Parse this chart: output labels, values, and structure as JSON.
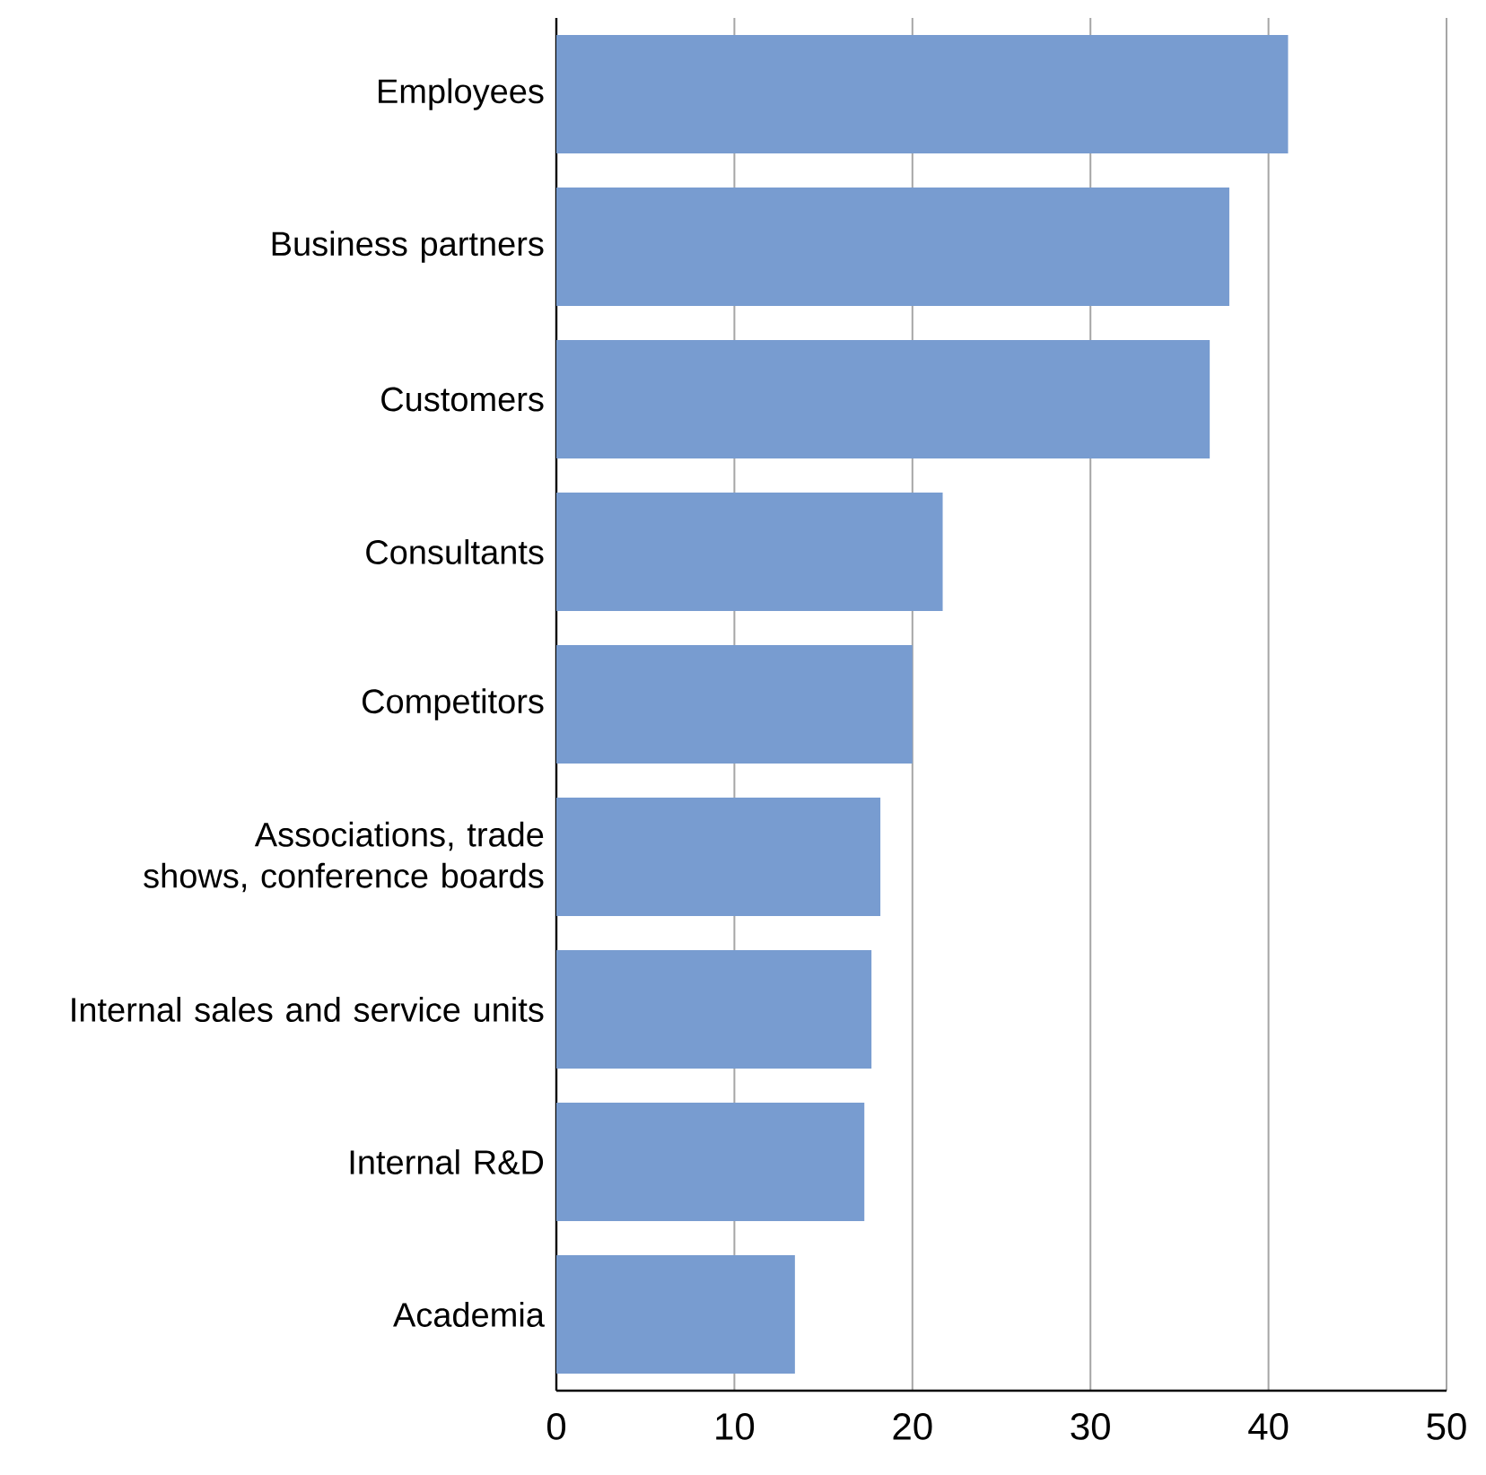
{
  "chart_data": {
    "type": "bar",
    "orientation": "horizontal",
    "categories": [
      "Employees",
      "Business partners",
      "Customers",
      "Consultants",
      "Competitors",
      "Associations, trade shows, conference boards",
      "Internal sales and service units",
      "Internal R&D",
      "Academia"
    ],
    "values": [
      41.1,
      37.8,
      36.7,
      21.7,
      20.0,
      18.2,
      17.7,
      17.3,
      13.4
    ],
    "color": "#789cd0",
    "xlim": [
      0,
      50
    ],
    "xticks": [
      0,
      10,
      20,
      30,
      40,
      50
    ],
    "grid": "x"
  }
}
